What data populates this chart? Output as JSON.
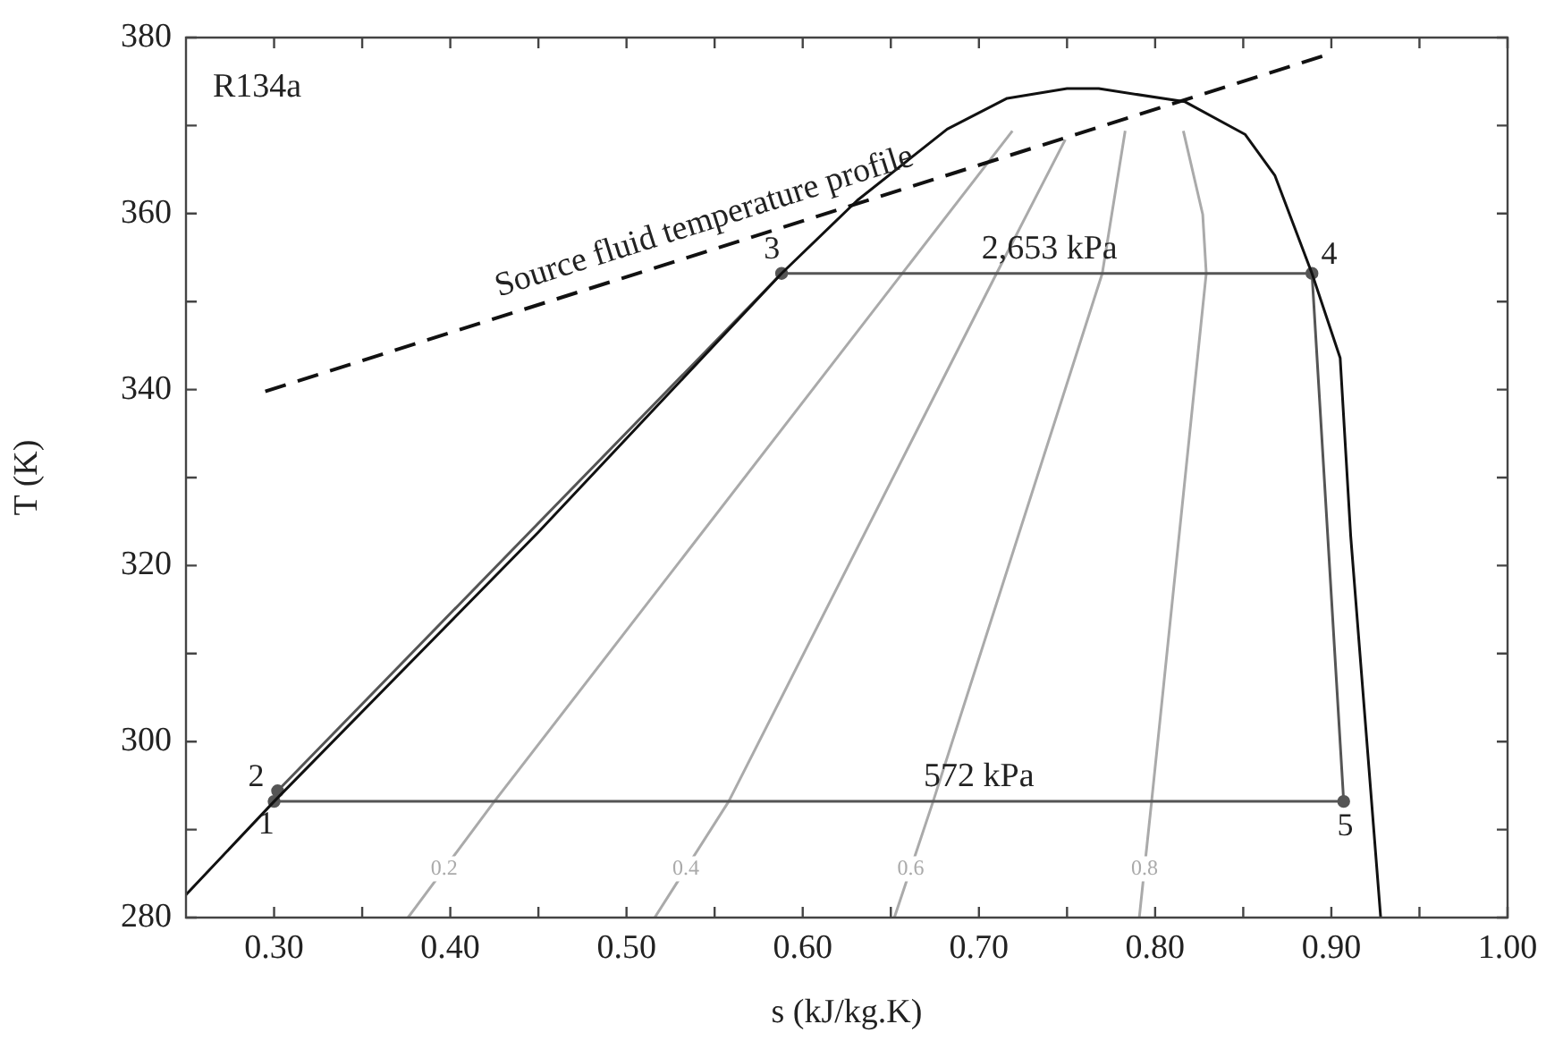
{
  "chart_data": {
    "type": "line",
    "xlabel": "s (kJ/kg.K)",
    "ylabel": "T (K)",
    "xlim": [
      0.25,
      1.0
    ],
    "ylim": [
      280,
      380
    ],
    "xticks": [
      {
        "value": 0.3,
        "label": "0.30"
      },
      {
        "value": 0.35,
        "label": null
      },
      {
        "value": 0.4,
        "label": "0.40"
      },
      {
        "value": 0.45,
        "label": null
      },
      {
        "value": 0.5,
        "label": "0.50"
      },
      {
        "value": 0.55,
        "label": null
      },
      {
        "value": 0.6,
        "label": "0.60"
      },
      {
        "value": 0.65,
        "label": null
      },
      {
        "value": 0.7,
        "label": "0.70"
      },
      {
        "value": 0.75,
        "label": null
      },
      {
        "value": 0.8,
        "label": "0.80"
      },
      {
        "value": 0.85,
        "label": null
      },
      {
        "value": 0.9,
        "label": "0.90"
      },
      {
        "value": 0.95,
        "label": null
      },
      {
        "value": 1.0,
        "label": "1.00"
      }
    ],
    "yticks": [
      280,
      {
        "value": 290,
        "label": null
      },
      300,
      {
        "value": 310,
        "label": null
      },
      320,
      {
        "value": 330,
        "label": null
      },
      340,
      {
        "value": 350,
        "label": null
      },
      360,
      {
        "value": 370,
        "label": null
      },
      380
    ],
    "grid": false,
    "legend": false,
    "marker": "none",
    "line_style": "solid",
    "series": [
      {
        "color": "#111111",
        "x": [
          0.25,
          0.3,
          0.45,
          0.588,
          0.631,
          0.682,
          0.716,
          0.75,
          0.768,
          0.817,
          0.851,
          0.868,
          0.889,
          0.905,
          0.911,
          0.928
        ],
        "values": [
          282.6,
          293.2,
          323.8,
          353.2,
          361.5,
          369.6,
          373.1,
          374.2,
          374.2,
          372.7,
          369.0,
          364.3,
          353.2,
          343.6,
          323.3,
          280.0
        ]
      },
      {
        "color": "#555555",
        "marker": "circle",
        "x": [
          0.3,
          0.302,
          0.588,
          0.889,
          0.907
        ],
        "values": [
          293.2,
          294.4,
          353.2,
          353.2,
          293.2
        ]
      },
      {
        "color": "#555555",
        "x": [
          0.3,
          0.907
        ],
        "values": [
          293.2,
          293.2
        ]
      },
      {
        "name": "Source fluid temperature profile",
        "color": "#111111",
        "line_style": "dashed",
        "x": [
          0.295,
          0.9
        ],
        "values": [
          339.8,
          378.2
        ]
      },
      {
        "name": "0.2",
        "color": "#aaaaaa",
        "x": [
          0.376,
          0.425,
          0.719
        ],
        "values": [
          280,
          293.2,
          369.4
        ]
      },
      {
        "name": "0.4",
        "color": "#aaaaaa",
        "x": [
          0.516,
          0.558,
          0.71,
          0.749
        ],
        "values": [
          280,
          293.2,
          353.2,
          368.4
        ]
      },
      {
        "name": "0.6",
        "color": "#aaaaaa",
        "x": [
          0.652,
          0.674,
          0.77,
          0.783
        ],
        "values": [
          280,
          293.2,
          353.2,
          369.4
        ]
      },
      {
        "name": "0.8",
        "color": "#aaaaaa",
        "x": [
          0.791,
          0.798,
          0.829,
          0.827,
          0.816
        ],
        "values": [
          280,
          293.2,
          353.2,
          359.9,
          369.4
        ]
      }
    ],
    "annotations": [
      "R134a",
      {
        "text": "1",
        "x": 0.3,
        "y": 293.2
      },
      {
        "text": "2",
        "x": 0.302,
        "y": 294.4
      },
      {
        "text": "3",
        "x": 0.588,
        "y": 353.2
      },
      {
        "text": "4",
        "x": 0.889,
        "y": 353.2
      },
      {
        "text": "5",
        "x": 0.907,
        "y": 293.2
      },
      {
        "text": "2,653 kPa",
        "x": 0.74,
        "y": 353.2
      },
      {
        "text": "572 kPa",
        "x": 0.7,
        "y": 293.2
      }
    ]
  }
}
